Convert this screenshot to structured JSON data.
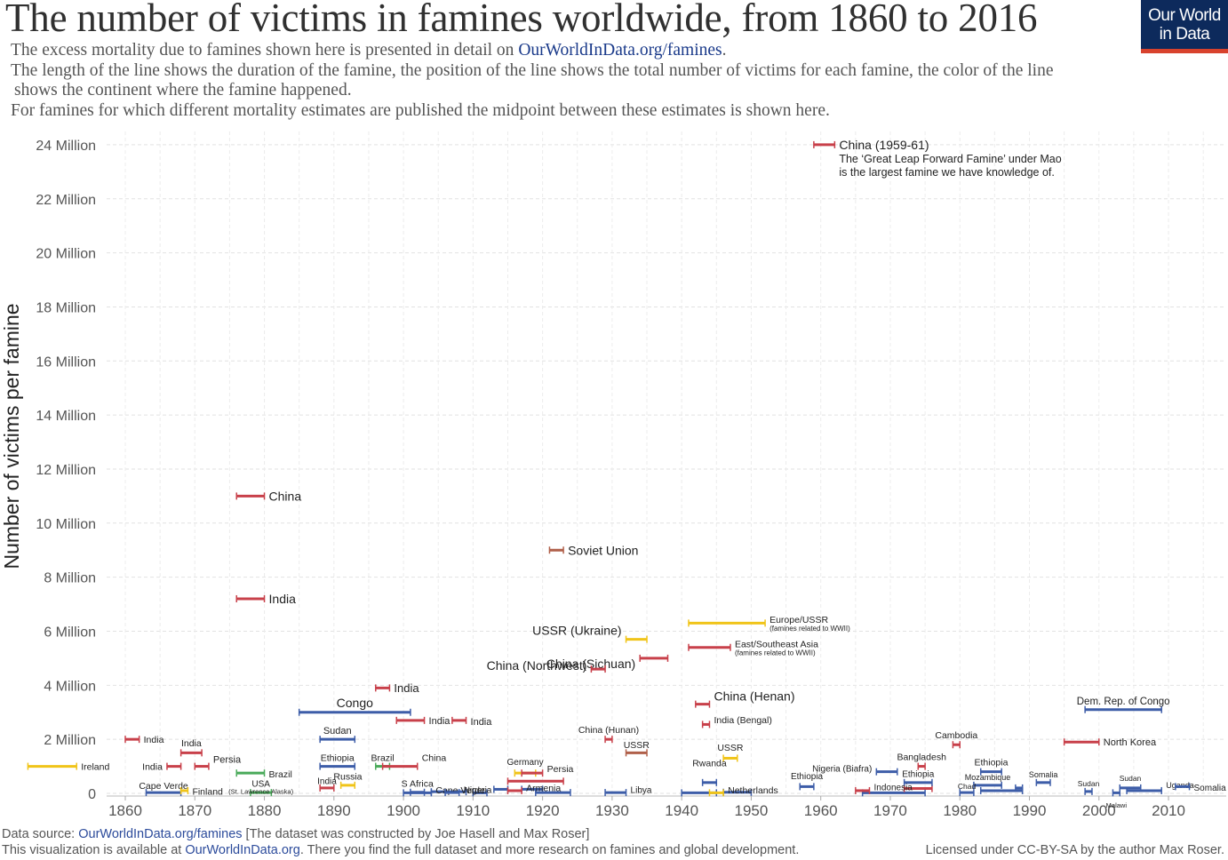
{
  "header": {
    "title": "The number of victims in famines worldwide, from 1860 to 2016",
    "subtitle_1_text": "The excess mortality due to famines shown here is presented in detail on ",
    "subtitle_1_link": "OurWorldInData.org/famines",
    "subtitle_1_end": ".",
    "subtitle_2": "The length of the line shows the duration of the famine, the position of the line shows the total number of victims for each famine, the color of the line",
    "subtitle_3": "shows the continent where the famine happened.",
    "subtitle_4": "For famines for which different mortality estimates are published the midpoint between these estimates is shown here."
  },
  "logo": {
    "line1": "Our World",
    "line2": "in Data",
    "bg_color": "#0d2a5c",
    "accent_color": "#d8422d"
  },
  "footer": {
    "source_prefix": "Data source: ",
    "source_link": "OurWorldInData.org/famines",
    "source_rest": " [The dataset was constructed by Joe Hasell and Max Roser]",
    "viz_prefix": "This visualization is available at ",
    "viz_link": "OurWorldInData.org",
    "viz_rest": ". There you find the full dataset and more research on famines and global development.",
    "license": "Licensed under CC-BY-SA by the author Max Roser."
  },
  "colors": {
    "Asia": "#c8404a",
    "Africa": "#3d5da8",
    "Europe": "#f0c419",
    "Americas": "#4aaa5a",
    "Eurasia": "#b0604a"
  },
  "chart_data": {
    "type": "range-scatter",
    "ylabel": "Number of victims per famine",
    "xlim": [
      1858,
      2017
    ],
    "ylim": [
      0,
      24000000
    ],
    "x_ticks": [
      1860,
      1870,
      1880,
      1890,
      1900,
      1910,
      1920,
      1930,
      1940,
      1950,
      1960,
      1970,
      1980,
      1990,
      2000,
      2010
    ],
    "y_ticks": [
      {
        "value": 0,
        "label": "0"
      },
      {
        "value": 2000000,
        "label": "2 Million"
      },
      {
        "value": 4000000,
        "label": "4 Million"
      },
      {
        "value": 6000000,
        "label": "6 Million"
      },
      {
        "value": 8000000,
        "label": "8 Million"
      },
      {
        "value": 10000000,
        "label": "10 Million"
      },
      {
        "value": 12000000,
        "label": "12 Million"
      },
      {
        "value": 14000000,
        "label": "14 Million"
      },
      {
        "value": 16000000,
        "label": "16 Million"
      },
      {
        "value": 18000000,
        "label": "18 Million"
      },
      {
        "value": 20000000,
        "label": "20 Million"
      },
      {
        "value": 22000000,
        "label": "22 Million"
      },
      {
        "value": 24000000,
        "label": "24 Million"
      }
    ],
    "grid": true,
    "famines": [
      {
        "label": "China (1959-61)",
        "note_1": "The ‘Great Leap Forward Famine’ under Mao",
        "note_2": "is the largest famine we have knowledge of.",
        "start": 1959,
        "end": 1961,
        "victims": 24000000,
        "region": "Asia"
      },
      {
        "label": "China",
        "start": 1876,
        "end": 1879,
        "victims": 11000000,
        "region": "Asia"
      },
      {
        "label": "Soviet Union",
        "start": 1921,
        "end": 1922,
        "victims": 9000000,
        "region": "Eurasia"
      },
      {
        "label": "India",
        "start": 1876,
        "end": 1879,
        "victims": 7200000,
        "region": "Asia"
      },
      {
        "label": "Europe/USSR",
        "note_1": "(famines related to WWII)",
        "start": 1941,
        "end": 1951,
        "victims": 6300000,
        "region": "Europe"
      },
      {
        "label": "USSR (Ukraine)",
        "start": 1932,
        "end": 1934,
        "victims": 5700000,
        "region": "Europe"
      },
      {
        "label": "East/Southeast Asia",
        "note_1": "(famines related to WWII)",
        "start": 1941,
        "end": 1946,
        "victims": 5400000,
        "region": "Asia"
      },
      {
        "label": "China (Sichuan)",
        "start": 1934,
        "end": 1937,
        "victims": 5000000,
        "region": "Asia"
      },
      {
        "label": "China (Northwest)",
        "start": 1927,
        "end": 1928,
        "victims": 4600000,
        "region": "Asia"
      },
      {
        "label": "India",
        "start": 1896,
        "end": 1897,
        "victims": 3900000,
        "region": "Asia"
      },
      {
        "label": "Congo",
        "start": 1885,
        "end": 1900,
        "victims": 3000000,
        "region": "Africa"
      },
      {
        "label": "China (Henan)",
        "start": 1942,
        "end": 1943,
        "victims": 3300000,
        "region": "Asia"
      },
      {
        "label": "India (Bengal)",
        "start": 1943,
        "end": 1943,
        "victims": 2550000,
        "region": "Asia"
      },
      {
        "label": "India",
        "start": 1899,
        "end": 1902,
        "victims": 2700000,
        "region": "Asia"
      },
      {
        "label": "India",
        "start": 1907,
        "end": 1908,
        "victims": 2700000,
        "region": "Asia"
      },
      {
        "label": "Dem. Rep. of Congo",
        "start": 1998,
        "end": 2008,
        "victims": 3100000,
        "region": "Africa"
      },
      {
        "label": "India",
        "start": 1860,
        "end": 1861,
        "victims": 2000000,
        "region": "Asia"
      },
      {
        "label": "Sudan",
        "start": 1888,
        "end": 1892,
        "victims": 2000000,
        "region": "Africa"
      },
      {
        "label": "China (Hunan)",
        "start": 1929,
        "end": 1929,
        "victims": 2000000,
        "region": "Asia"
      },
      {
        "label": "Cambodia",
        "start": 1979,
        "end": 1979,
        "victims": 1800000,
        "region": "Asia"
      },
      {
        "label": "North Korea",
        "start": 1995,
        "end": 1999,
        "victims": 1900000,
        "region": "Asia"
      },
      {
        "label": "India",
        "start": 1868,
        "end": 1870,
        "victims": 1500000,
        "region": "Asia"
      },
      {
        "label": "USSR",
        "start": 1932,
        "end": 1934,
        "victims": 1500000,
        "region": "Eurasia"
      },
      {
        "label": "USSR",
        "start": 1946,
        "end": 1947,
        "victims": 1300000,
        "region": "Europe"
      },
      {
        "label": "Persia",
        "start": 1870,
        "end": 1871,
        "victims": 1000000,
        "region": "Asia"
      },
      {
        "label": "Ireland",
        "start": 1846,
        "end": 1852,
        "victims": 1000000,
        "region": "Europe"
      },
      {
        "label": "India",
        "start": 1866,
        "end": 1867,
        "victims": 1000000,
        "region": "Asia"
      },
      {
        "label": "Ethiopia",
        "start": 1888,
        "end": 1892,
        "victims": 1000000,
        "region": "Africa"
      },
      {
        "label": "Brazil",
        "start": 1896,
        "end": 1897,
        "victims": 1000000,
        "region": "Americas"
      },
      {
        "label": "China",
        "start": 1897,
        "end": 1901,
        "victims": 1000000,
        "region": "Asia"
      },
      {
        "label": "Bangladesh",
        "start": 1974,
        "end": 1974,
        "victims": 1000000,
        "region": "Asia"
      },
      {
        "label": "Ethiopia",
        "start": 1983,
        "end": 1985,
        "victims": 800000,
        "region": "Africa"
      },
      {
        "label": "Nigeria (Biafra)",
        "start": 1968,
        "end": 1970,
        "victims": 800000,
        "region": "Africa"
      },
      {
        "label": "Germany",
        "start": 1916,
        "end": 1918,
        "victims": 750000,
        "region": "Europe"
      },
      {
        "label": "Persia",
        "start": 1917,
        "end": 1919,
        "victims": 750000,
        "region": "Asia"
      },
      {
        "label": "Brazil",
        "start": 1876,
        "end": 1879,
        "victims": 750000,
        "region": "Americas"
      },
      {
        "label": "Rwanda",
        "start": 1943,
        "end": 1944,
        "victims": 400000,
        "region": "Africa"
      },
      {
        "label": "Ethiopia",
        "start": 1972,
        "end": 1975,
        "victims": 400000,
        "region": "Africa"
      },
      {
        "label": "Somalia",
        "start": 1991,
        "end": 1992,
        "victims": 400000,
        "region": "Africa"
      },
      {
        "label": "Mozambique",
        "start": 1982,
        "end": 1985,
        "victims": 300000,
        "region": "Africa"
      },
      {
        "label": "Cape Verde",
        "start": 1863,
        "end": 1867,
        "victims": 30000,
        "region": "Africa"
      },
      {
        "label": "Finland",
        "start": 1868,
        "end": 1868,
        "victims": 100000,
        "region": "Europe"
      },
      {
        "label": "USA",
        "sublabel": "(St. Lawrence Alaska)",
        "start": 1878,
        "end": 1880,
        "victims": 30000,
        "region": "Americas"
      },
      {
        "label": "India",
        "start": 1888,
        "end": 1889,
        "victims": 200000,
        "region": "Asia"
      },
      {
        "label": "Russia",
        "start": 1891,
        "end": 1892,
        "victims": 300000,
        "region": "Europe"
      },
      {
        "label": "Cape Verde",
        "start": 1900,
        "end": 1903,
        "victims": 20000,
        "region": "Africa"
      },
      {
        "label": "S Africa",
        "start": 1901,
        "end": 1902,
        "victims": 40000,
        "region": "Africa"
      },
      {
        "label": "Nigeria",
        "start": 1906,
        "end": 1907,
        "victims": 30000,
        "region": "Africa"
      },
      {
        "label": "Armenia",
        "start": 1915,
        "end": 1916,
        "victims": 100000,
        "region": "Asia"
      },
      {
        "label": "Libya",
        "start": 1929,
        "end": 1931,
        "victims": 30000,
        "region": "Africa"
      },
      {
        "label": "Netherlands",
        "start": 1944,
        "end": 1945,
        "victims": 20000,
        "region": "Europe"
      },
      {
        "label": "Ethiopia",
        "start": 1957,
        "end": 1958,
        "victims": 250000,
        "region": "Africa"
      },
      {
        "label": "Indonesia",
        "start": 1965,
        "end": 1966,
        "victims": 100000,
        "region": "Asia"
      },
      {
        "label": "Chad",
        "start": 1980,
        "end": 1981,
        "victims": 30000,
        "region": "Africa"
      },
      {
        "label": "Sudan",
        "start": 1998,
        "end": 1998,
        "victims": 70000,
        "region": "Africa"
      },
      {
        "label": "Malawi",
        "start": 2002,
        "end": 2002,
        "victims": 20000,
        "region": "Africa"
      },
      {
        "label": "Sudan",
        "start": 2003,
        "end": 2005,
        "victims": 200000,
        "region": "Africa"
      },
      {
        "label": "Uganda",
        "start": 2004,
        "end": 2008,
        "victims": 100000,
        "region": "Africa"
      },
      {
        "label": "Somalia",
        "start": 2011,
        "end": 2012,
        "victims": 250000,
        "region": "Africa"
      }
    ],
    "unlabeled": [
      {
        "start": 1904,
        "end": 1908,
        "victims": 60000,
        "region": "Africa"
      },
      {
        "start": 1910,
        "end": 1911,
        "victims": 20000,
        "region": "Africa"
      },
      {
        "start": 1913,
        "end": 1914,
        "victims": 150000,
        "region": "Africa"
      },
      {
        "start": 1915,
        "end": 1922,
        "victims": 450000,
        "region": "Asia"
      },
      {
        "start": 1917,
        "end": 1919,
        "victims": 150000,
        "region": "Africa"
      },
      {
        "start": 1919,
        "end": 1923,
        "victims": 30000,
        "region": "Africa"
      },
      {
        "start": 1940,
        "end": 1944,
        "victims": 20000,
        "region": "Africa"
      },
      {
        "start": 1946,
        "end": 1949,
        "victims": 40000,
        "region": "Africa"
      },
      {
        "start": 1966,
        "end": 1974,
        "victims": 20000,
        "region": "Africa"
      },
      {
        "start": 1972,
        "end": 1975,
        "victims": 180000,
        "region": "Asia"
      },
      {
        "start": 1983,
        "end": 1988,
        "victims": 100000,
        "region": "Africa"
      },
      {
        "start": 1988,
        "end": 1988,
        "victims": 200000,
        "region": "Africa"
      }
    ]
  }
}
